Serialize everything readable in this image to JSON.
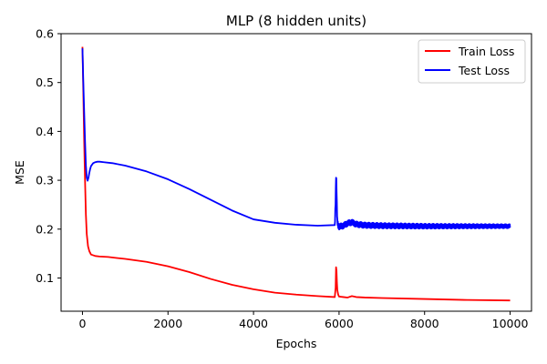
{
  "chart_data": {
    "type": "line",
    "title": "MLP (8 hidden units)",
    "xlabel": "Epochs",
    "ylabel": "MSE",
    "xlim": [
      -500,
      10500
    ],
    "ylim": [
      0.032,
      0.6
    ],
    "xticks": [
      0,
      2000,
      4000,
      6000,
      8000,
      10000
    ],
    "yticks": [
      0.1,
      0.2,
      0.3,
      0.4,
      0.5,
      0.6
    ],
    "xtick_labels": [
      "0",
      "2000",
      "4000",
      "6000",
      "8000",
      "10000"
    ],
    "ytick_labels": [
      "0.1",
      "0.2",
      "0.3",
      "0.4",
      "0.5",
      "0.6"
    ],
    "grid": false,
    "legend_position": "top-right",
    "series": [
      {
        "name": "Train Loss",
        "color": "#ff0000",
        "x": [
          0,
          20,
          40,
          60,
          80,
          100,
          130,
          160,
          200,
          300,
          400,
          600,
          800,
          1000,
          1500,
          2000,
          2500,
          3000,
          3500,
          4000,
          4500,
          5000,
          5500,
          5900,
          5920,
          5930,
          5940,
          5950,
          5960,
          5980,
          6000,
          6100,
          6200,
          6300,
          6400,
          6600,
          7000,
          8000,
          9000,
          10000
        ],
        "y": [
          0.573,
          0.48,
          0.38,
          0.3,
          0.23,
          0.19,
          0.165,
          0.155,
          0.148,
          0.145,
          0.144,
          0.143,
          0.141,
          0.139,
          0.133,
          0.124,
          0.112,
          0.098,
          0.086,
          0.077,
          0.07,
          0.066,
          0.063,
          0.061,
          0.08,
          0.122,
          0.115,
          0.09,
          0.075,
          0.066,
          0.062,
          0.061,
          0.06,
          0.063,
          0.061,
          0.06,
          0.059,
          0.057,
          0.055,
          0.054
        ]
      },
      {
        "name": "Test Loss",
        "color": "#0000ff",
        "x": [
          0,
          20,
          40,
          60,
          80,
          100,
          120,
          140,
          160,
          180,
          200,
          250,
          300,
          350,
          400,
          500,
          700,
          1000,
          1500,
          2000,
          2500,
          3000,
          3500,
          4000,
          4500,
          5000,
          5500,
          5900,
          5920,
          5930,
          5940,
          5950,
          5960,
          5980,
          6000,
          6100,
          6200,
          6300,
          6400,
          6600,
          7000,
          8000,
          9000,
          10000
        ],
        "y": [
          0.57,
          0.5,
          0.44,
          0.38,
          0.33,
          0.305,
          0.299,
          0.305,
          0.315,
          0.323,
          0.329,
          0.335,
          0.337,
          0.338,
          0.338,
          0.337,
          0.335,
          0.33,
          0.318,
          0.302,
          0.282,
          0.26,
          0.238,
          0.22,
          0.213,
          0.209,
          0.207,
          0.205,
          0.26,
          0.31,
          0.29,
          0.24,
          0.215,
          0.208,
          0.205,
          0.207,
          0.212,
          0.214,
          0.21,
          0.208,
          0.207,
          0.206,
          0.206,
          0.206
        ],
        "noise_band": {
          "x_start": 5900,
          "x_end": 10000,
          "amplitude_start": 0.012,
          "amplitude_end": 0.008
        }
      }
    ]
  }
}
